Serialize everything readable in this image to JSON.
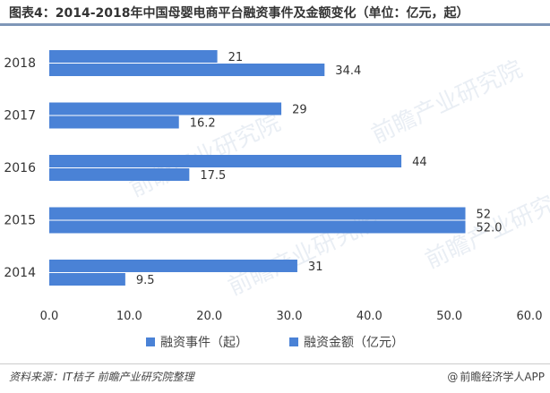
{
  "title": "图表4：2014-2018年中国母婴电商平台融资事件及金额变化（单位：亿元，起）",
  "accent_color": "#4a82d6",
  "footer": {
    "source": "资料来源：IT桔子 前瞻产业研究院整理",
    "brand": "前瞻经济学人APP",
    "brand_icon": "at-sign-icon"
  },
  "chart_data": {
    "type": "bar",
    "orientation": "horizontal",
    "categories": [
      "2018",
      "2017",
      "2016",
      "2015",
      "2014"
    ],
    "series": [
      {
        "name": "融资事件（起）",
        "values": [
          21,
          29,
          44,
          52,
          31
        ],
        "labels": [
          "21",
          "29",
          "44",
          "52",
          "31"
        ],
        "color": "#4a82d6"
      },
      {
        "name": "融资金额（亿元）",
        "values": [
          34.4,
          16.2,
          17.5,
          52.0,
          9.5
        ],
        "labels": [
          "34.4",
          "16.2",
          "17.5",
          "52.0",
          "9.5"
        ],
        "color": "#4a82d6"
      }
    ],
    "xlim": [
      0,
      60
    ],
    "xticks": [
      "0.0",
      "10.0",
      "20.0",
      "30.0",
      "40.0",
      "50.0",
      "60.0"
    ],
    "grid": false,
    "legend_position": "bottom"
  }
}
